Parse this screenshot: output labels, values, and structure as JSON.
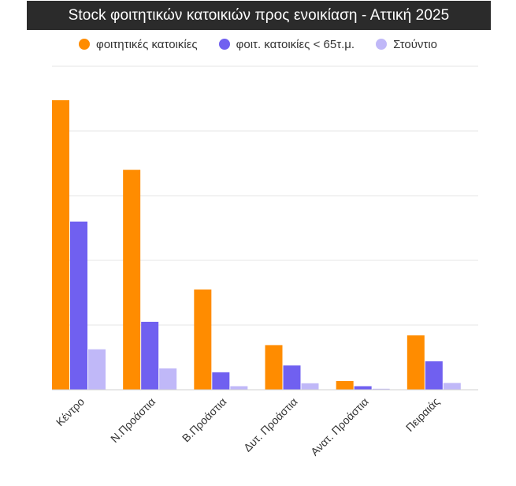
{
  "title": "Stock  φοιτητικών κατοικιών προς ενοικίαση - Αττική 2025",
  "legend": [
    {
      "label": "φοιτητικές κατοικίες",
      "color": "#ff8c00"
    },
    {
      "label": "φοιτ. κατοικίες < 65τ.μ.",
      "color": "#7060f0"
    },
    {
      "label": "Στούντιο",
      "color": "#c0b8f8"
    }
  ],
  "colors": {
    "gridline": "#e6e6e6",
    "axis": "#d0d0d0"
  },
  "chart_data": {
    "type": "bar",
    "title": "Stock  φοιτητικών κατοικιών προς ενοικίαση - Αττική 2025",
    "xlabel": "",
    "ylabel": "",
    "ylim": [
      0,
      100
    ],
    "grid": true,
    "legend_position": "top",
    "y_tick_labels_shown": false,
    "categories": [
      "Κέντρο",
      "Ν.Προάστια",
      "Β.Προάστια",
      "Δυτ. Προάστια",
      "Ανατ. Προάστια",
      "Πειραιάς"
    ],
    "series": [
      {
        "name": "φοιτητικές κατοικίες",
        "color": "#ff8c00",
        "values": [
          89.5,
          68,
          31,
          13.8,
          2.7,
          16.8
        ]
      },
      {
        "name": "φοιτ. κατοικίες < 65τ.μ.",
        "color": "#7060f0",
        "values": [
          52,
          21,
          5.4,
          7.5,
          1.1,
          8.8
        ]
      },
      {
        "name": "Στούντιο",
        "color": "#c0b8f8",
        "values": [
          12.5,
          6.6,
          1.1,
          2,
          0.3,
          2.1
        ]
      }
    ]
  }
}
